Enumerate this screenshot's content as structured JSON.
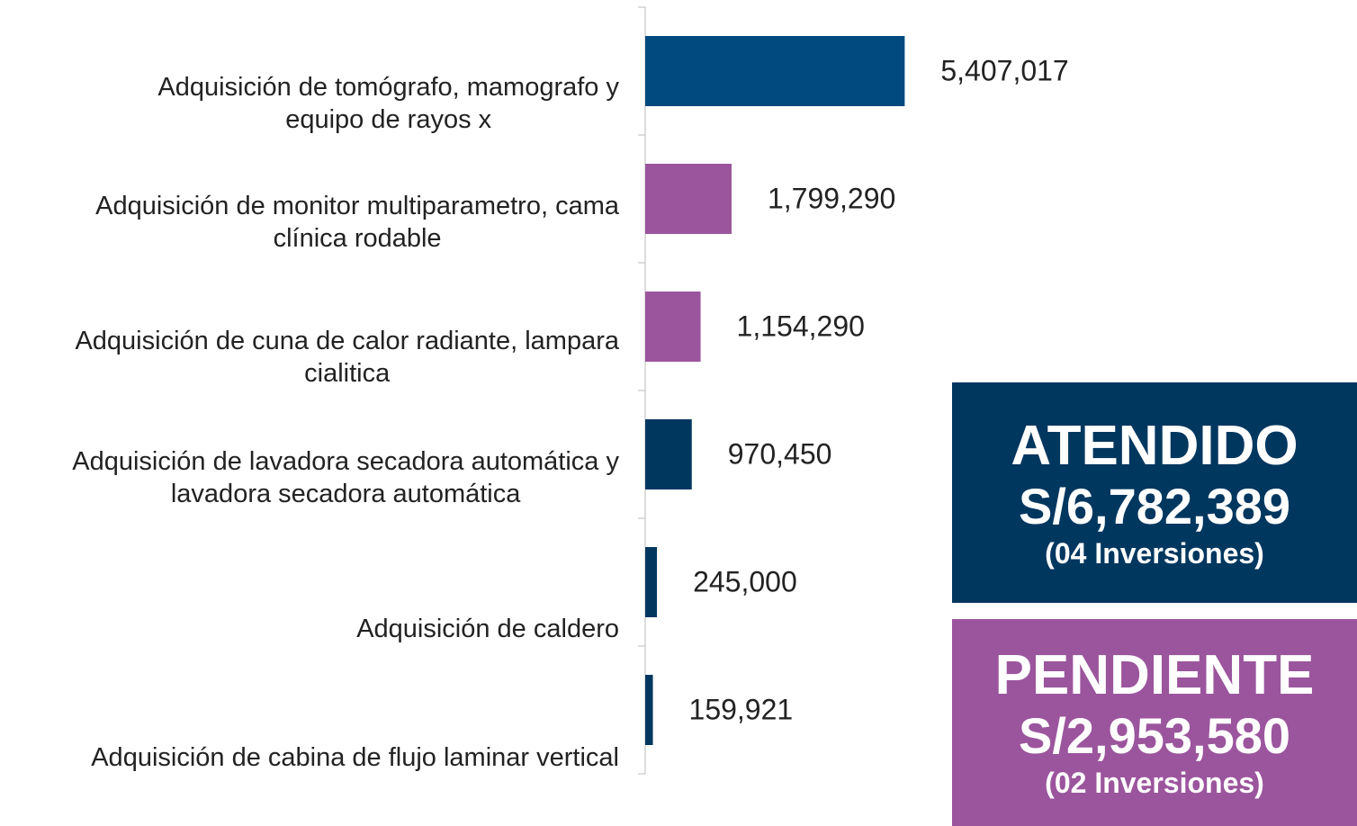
{
  "chart_data": {
    "type": "barh",
    "categories": [
      "Adquisición de tomógrafo, mamografo y\nequipo de rayos x",
      "Adquisición de monitor multiparametro, cama\nclínica rodable",
      "Adquisición de cuna de calor radiante, lampara\ncialitica",
      "Adquisición de lavadora secadora automática y\nlavadora secadora automática",
      "Adquisición de caldero",
      "Adquisición de cabina de flujo laminar vertical"
    ],
    "values": [
      5407017,
      1799290,
      1154290,
      970450,
      245000,
      159921
    ],
    "value_labels": [
      "5,407,017",
      "1,799,290",
      "1,154,290",
      "970,450",
      "245,000",
      "159,921"
    ],
    "colors": [
      "#004a80",
      "#9b559d",
      "#9b559d",
      "#00375f",
      "#00375f",
      "#00375f"
    ],
    "xlim": [
      0,
      6000000
    ],
    "annotations": [
      {
        "lines": [
          "ATENDIDO",
          "S/6,782,389",
          "(04 Inversiones)"
        ],
        "color": "#00375f"
      },
      {
        "lines": [
          "PENDIENTE",
          "S/2,953,580",
          "(02 Inversiones)"
        ],
        "color": "#9b559d"
      }
    ]
  }
}
